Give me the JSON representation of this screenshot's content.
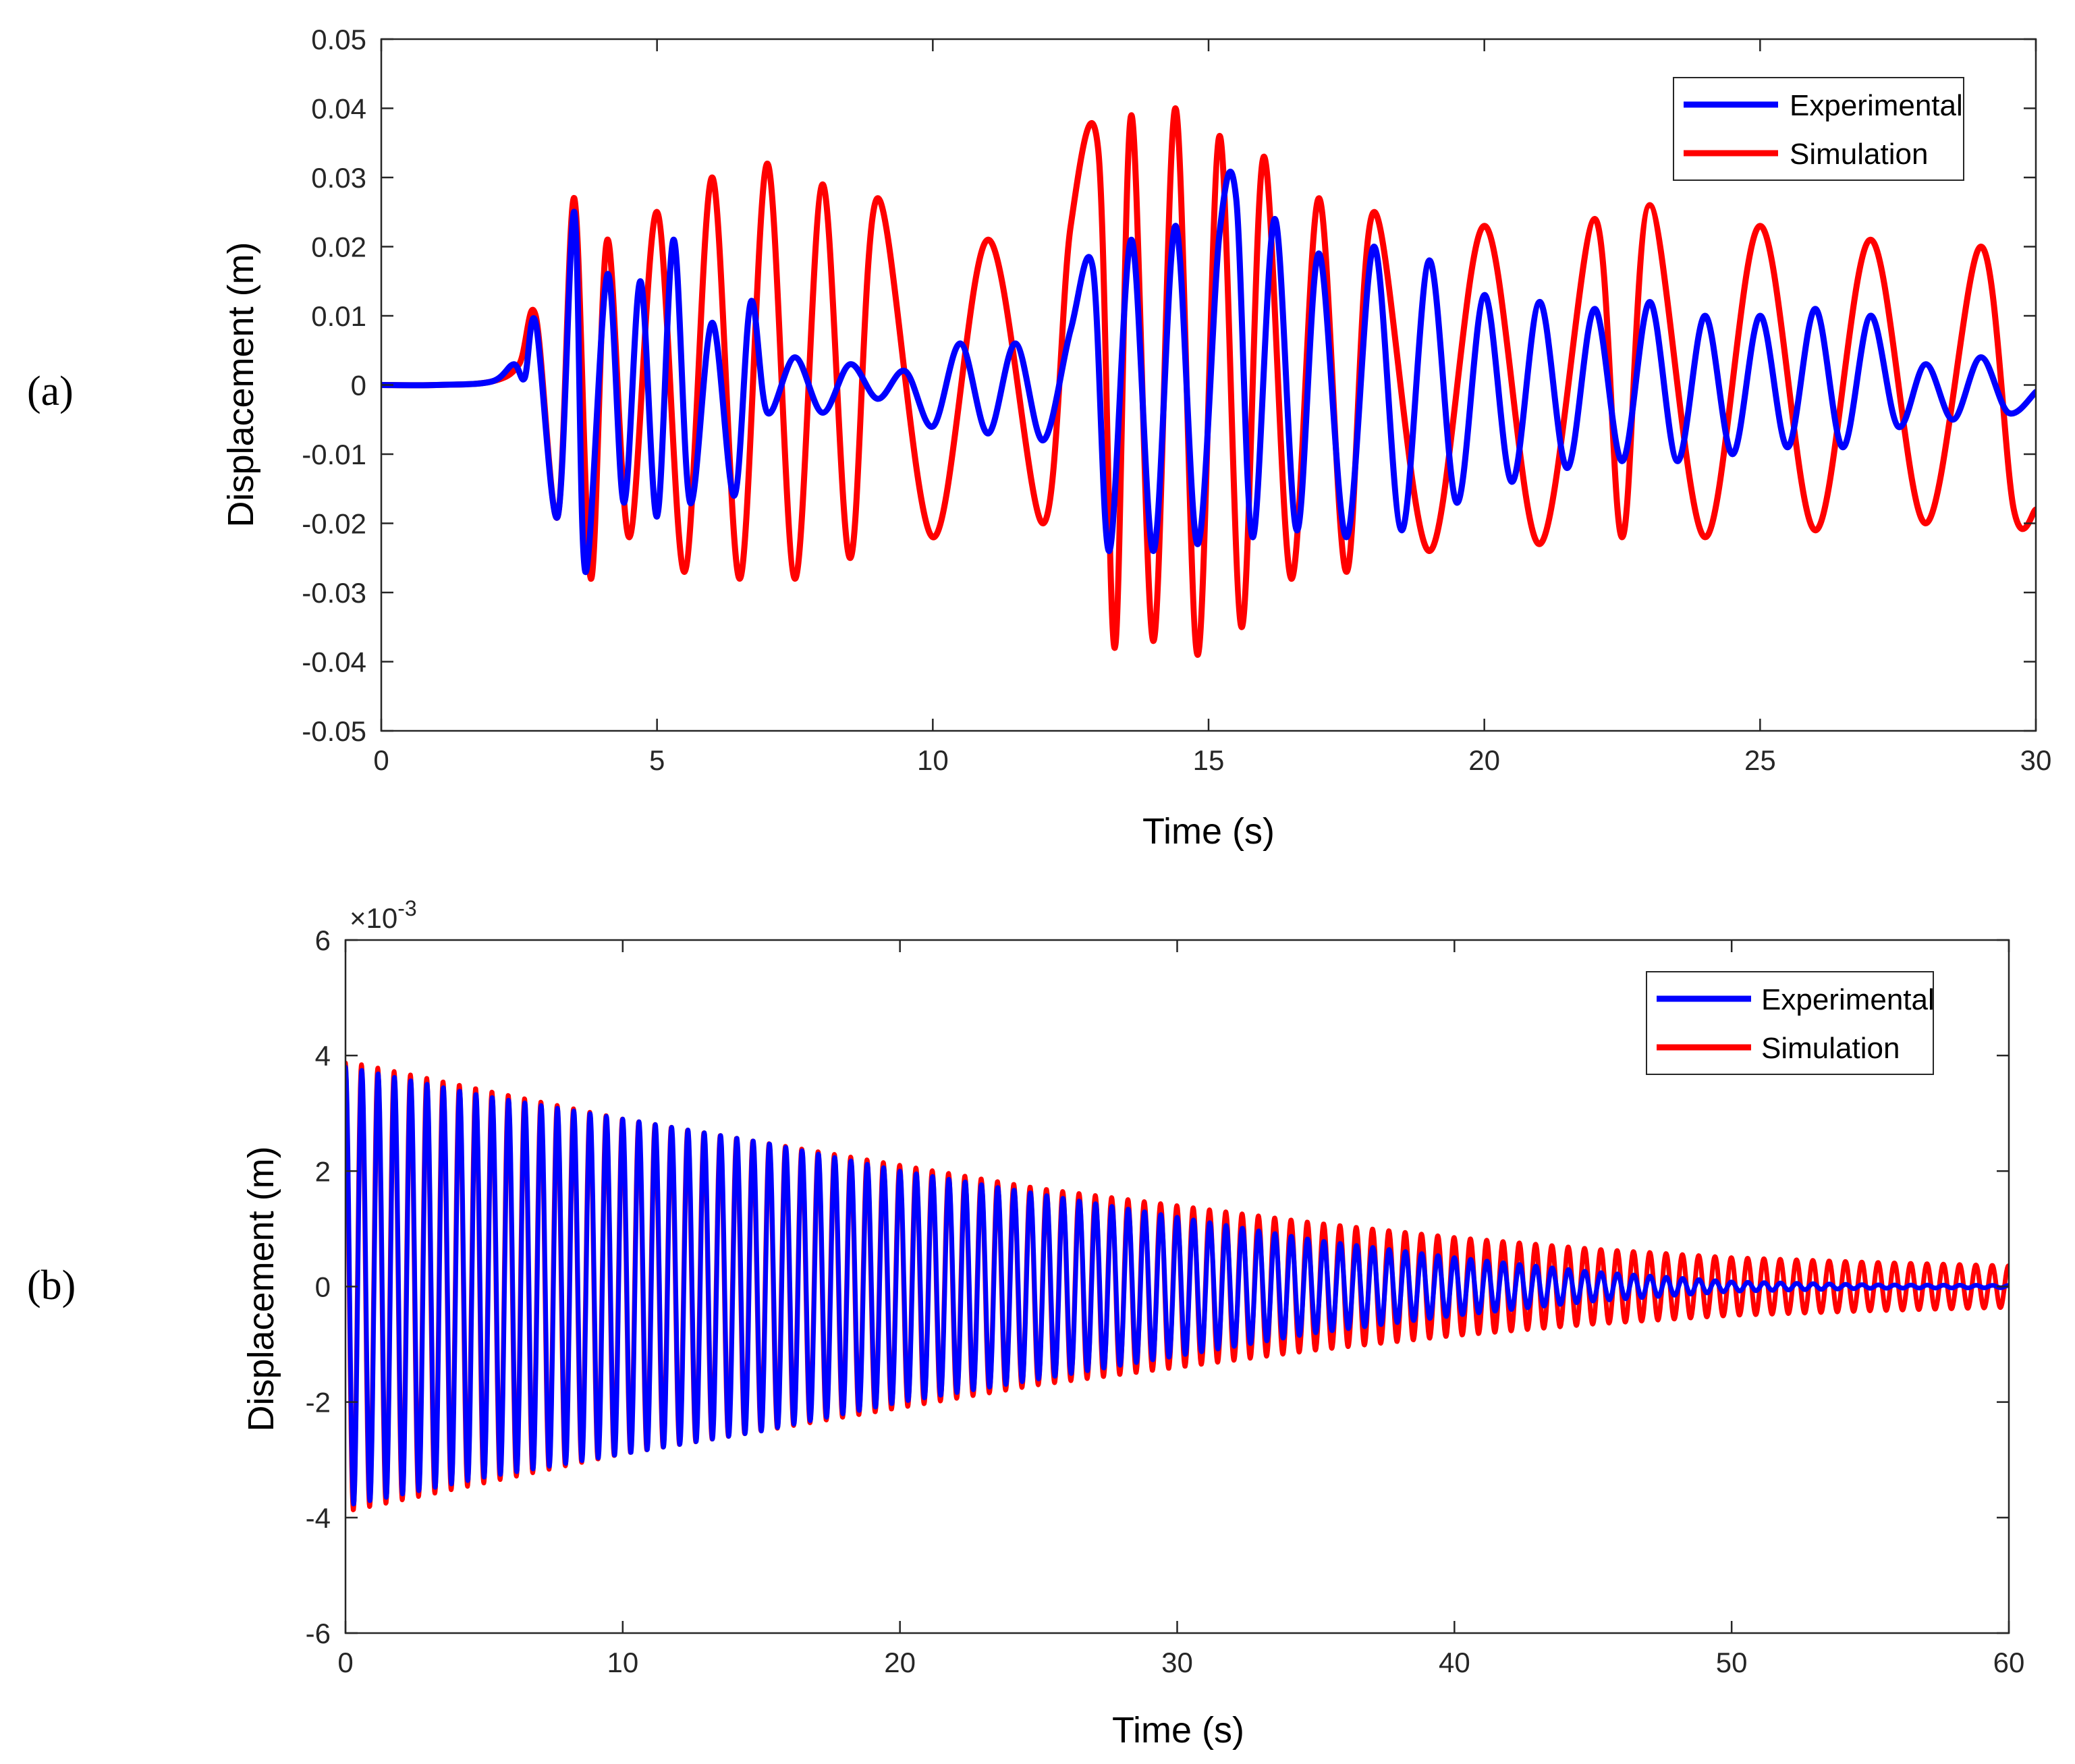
{
  "chart_data": [
    {
      "id": "a",
      "panel_label": "(a)",
      "type": "line",
      "xlabel": "Time (s)",
      "ylabel": "Displacement (m)",
      "xlim": [
        0,
        30
      ],
      "ylim": [
        -0.05,
        0.05
      ],
      "xticks": [
        0,
        5,
        10,
        15,
        20,
        25,
        30
      ],
      "xtick_labels": [
        "0",
        "5",
        "10",
        "15",
        "20",
        "25",
        "30"
      ],
      "yticks": [
        -0.05,
        -0.04,
        -0.03,
        -0.02,
        -0.01,
        0,
        0.01,
        0.02,
        0.03,
        0.04,
        0.05
      ],
      "ytick_labels": [
        "-0.05",
        "-0.04",
        "-0.03",
        "-0.02",
        "-0.01",
        "0",
        "0.01",
        "0.02",
        "0.03",
        "0.04",
        "0.05"
      ],
      "legend_position": "top-right",
      "series": [
        {
          "name": "Experimental",
          "color": "#0000ff",
          "description": "irregular seismic response, peaks about 0.025 m near 3.5 s and 15.5 s",
          "x": [
            0,
            1,
            2,
            2.4,
            2.6,
            2.8,
            3.2,
            3.5,
            3.7,
            4.1,
            4.4,
            4.7,
            5.0,
            5.3,
            5.6,
            6.0,
            6.4,
            6.7,
            7.0,
            7.5,
            8.0,
            8.5,
            9.0,
            9.5,
            10.0,
            10.5,
            11.0,
            11.5,
            12.0,
            12.5,
            12.9,
            13.2,
            13.6,
            14.0,
            14.4,
            14.8,
            15.2,
            15.5,
            15.8,
            16.2,
            16.6,
            17.0,
            17.5,
            18.0,
            18.5,
            19.0,
            19.5,
            20.0,
            20.5,
            21.0,
            21.5,
            22.0,
            22.5,
            23.0,
            23.5,
            24.0,
            24.5,
            25.0,
            25.5,
            26.0,
            26.5,
            27.0,
            27.5,
            28.0,
            28.5,
            29.0,
            29.5,
            30.0
          ],
          "y": [
            0,
            0,
            0.0005,
            0.003,
            0.001,
            0.009,
            -0.019,
            0.025,
            -0.027,
            0.016,
            -0.017,
            0.015,
            -0.019,
            0.021,
            -0.017,
            0.009,
            -0.016,
            0.012,
            -0.004,
            0.004,
            -0.004,
            0.003,
            -0.002,
            0.002,
            -0.006,
            0.006,
            -0.007,
            0.006,
            -0.008,
            0.008,
            0.017,
            -0.024,
            0.021,
            -0.024,
            0.023,
            -0.023,
            0.022,
            0.027,
            -0.022,
            0.024,
            -0.021,
            0.019,
            -0.022,
            0.02,
            -0.021,
            0.018,
            -0.017,
            0.013,
            -0.014,
            0.012,
            -0.012,
            0.011,
            -0.011,
            0.012,
            -0.011,
            0.01,
            -0.01,
            0.01,
            -0.009,
            0.011,
            -0.009,
            0.01,
            -0.006,
            0.003,
            -0.005,
            0.004,
            -0.004,
            -0.001
          ]
        },
        {
          "name": "Simulation",
          "color": "#ff0000",
          "description": "sinusoidal response about 1.6 Hz, envelope about 0.025 m with a burst near 0.04 m at 13-15 s",
          "x": [
            0,
            1,
            2,
            2.5,
            2.8,
            3.2,
            3.5,
            3.8,
            4.1,
            4.5,
            5.0,
            5.5,
            6.0,
            6.5,
            7.0,
            7.5,
            8.0,
            8.5,
            9.0,
            10.0,
            11.0,
            12.0,
            12.5,
            13.0,
            13.3,
            13.6,
            14.0,
            14.4,
            14.8,
            15.2,
            15.6,
            16.0,
            16.5,
            17.0,
            17.5,
            18.0,
            19.0,
            20.0,
            21.0,
            22.0,
            22.5,
            23.0,
            24.0,
            25.0,
            26.0,
            27.0,
            28.0,
            29.0,
            29.6,
            30.0
          ],
          "y": [
            0,
            0,
            0.0005,
            0.003,
            0.01,
            -0.019,
            0.027,
            -0.028,
            0.021,
            -0.022,
            0.025,
            -0.027,
            0.03,
            -0.028,
            0.032,
            -0.028,
            0.029,
            -0.025,
            0.027,
            -0.022,
            0.021,
            -0.02,
            0.023,
            0.034,
            -0.038,
            0.039,
            -0.037,
            0.04,
            -0.039,
            0.036,
            -0.035,
            0.033,
            -0.028,
            0.027,
            -0.027,
            0.025,
            -0.024,
            0.023,
            -0.023,
            0.024,
            -0.022,
            0.026,
            -0.022,
            0.023,
            -0.021,
            0.021,
            -0.02,
            0.02,
            -0.018,
            -0.018
          ]
        }
      ]
    },
    {
      "id": "b",
      "panel_label": "(b)",
      "type": "line",
      "xlabel": "Time (s)",
      "ylabel": "Displacement (m)",
      "exponent_label": "×10",
      "exponent_power": "-3",
      "xlim": [
        0,
        60
      ],
      "ylim": [
        -6,
        6
      ],
      "xticks": [
        0,
        10,
        20,
        30,
        40,
        50,
        60
      ],
      "xtick_labels": [
        "0",
        "10",
        "20",
        "30",
        "40",
        "50",
        "60"
      ],
      "yticks": [
        -6,
        -4,
        -2,
        0,
        2,
        4,
        6
      ],
      "ytick_labels": [
        "-6",
        "-4",
        "-2",
        "0",
        "2",
        "4",
        "6"
      ],
      "legend_position": "top-right",
      "series": [
        {
          "name": "Experimental",
          "color": "#0000ff",
          "description": "free vibration about 1.7 Hz, amplitude (x10^-3 m) decaying from 3.8 to about 0 by 50 s",
          "frequency_hz": 1.7,
          "x": [
            0,
            5,
            10,
            15,
            20,
            25,
            30,
            35,
            40,
            45,
            50,
            55,
            60
          ],
          "amplitude": [
            3.8,
            3.3,
            2.9,
            2.5,
            2.0,
            1.6,
            1.2,
            0.8,
            0.5,
            0.25,
            0.08,
            0.03,
            0.02
          ]
        },
        {
          "name": "Simulation",
          "color": "#ff0000",
          "description": "free vibration about 1.7 Hz, amplitude (x10^-3 m) decaying from 3.9 to 0.4",
          "frequency_hz": 1.7,
          "x": [
            0,
            5,
            10,
            15,
            20,
            25,
            30,
            35,
            40,
            45,
            50,
            55,
            60
          ],
          "amplitude": [
            3.9,
            3.4,
            2.9,
            2.5,
            2.1,
            1.7,
            1.4,
            1.1,
            0.85,
            0.65,
            0.5,
            0.42,
            0.36
          ]
        }
      ]
    }
  ]
}
